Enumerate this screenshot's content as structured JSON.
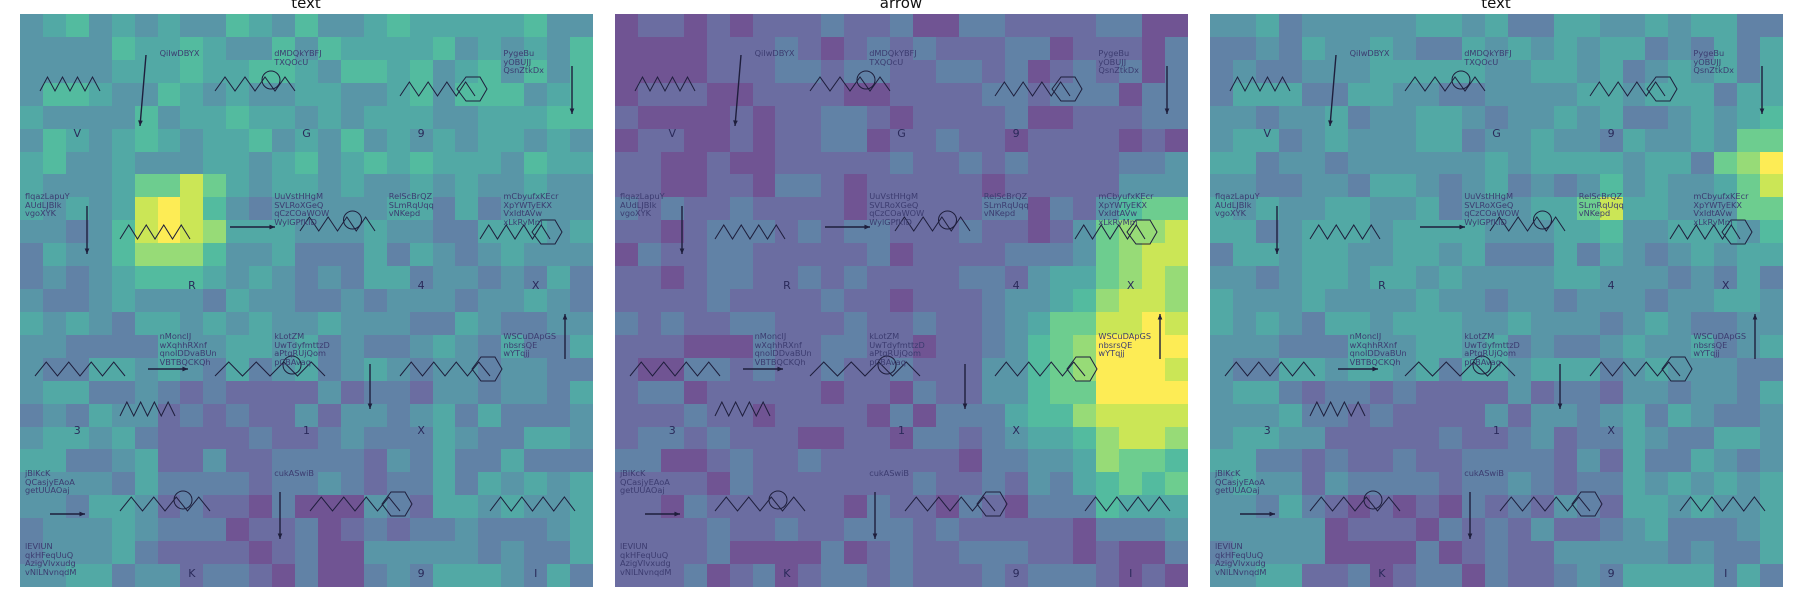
{
  "panels": [
    {
      "title": "text",
      "map": "text1"
    },
    {
      "title": "arrow",
      "map": "arrow"
    },
    {
      "title": "text",
      "map": "text2"
    }
  ],
  "cells": [
    {
      "label": "V",
      "text": ""
    },
    {
      "label": "",
      "text": "QiIwDBYX"
    },
    {
      "label": "G",
      "text": "dMDQkYBFJ\nTXQOcU"
    },
    {
      "label": "9",
      "text": ""
    },
    {
      "label": "",
      "text": "PygeBu\nyOBUJJ\nQsnZtkDx"
    },
    {
      "label": "",
      "text": "flqazLapuY\nAUdLJBIk\nvgoXYK"
    },
    {
      "label": "R",
      "text": ""
    },
    {
      "label": "",
      "text": "UuVstHHgM\nSVLRoXGeQ\nqCzCOaWOW\nWylGPfkID"
    },
    {
      "label": "4",
      "text": "RelScBrQZ\nSLmRqUqq\nvNKepd"
    },
    {
      "label": "X",
      "text": "mCbyufxKEcr\nXpYWTyEKX\nVxIdtAVw\nxLkRyMm"
    },
    {
      "label": "3",
      "text": ""
    },
    {
      "label": "",
      "text": "nMonclJ\nwXqhhRXnf\nqnoIDDvaBUn\nVBTBQCKQh"
    },
    {
      "label": "1",
      "text": "kLotZM\nUwTdyfmttzD\naPtqRUjQom\npCBAvaq"
    },
    {
      "label": "X",
      "text": ""
    },
    {
      "label": "",
      "text": "WSCuDApGS\nnbsrsQE\nwYTqjj"
    },
    {
      "label": "",
      "text": "jBlKcK\nQCasjyEAoA\ngetUUAOaj"
    },
    {
      "label": "K",
      "text": ""
    },
    {
      "label": "",
      "text": "cukASwiB"
    },
    {
      "label": "9",
      "text": ""
    },
    {
      "label": "I",
      "text": ""
    },
    {
      "label": "",
      "text": "lEVIUN\nqkHFeqUuQ\nAzigVIvxudg\nvNlLNvnqdM"
    }
  ]
}
